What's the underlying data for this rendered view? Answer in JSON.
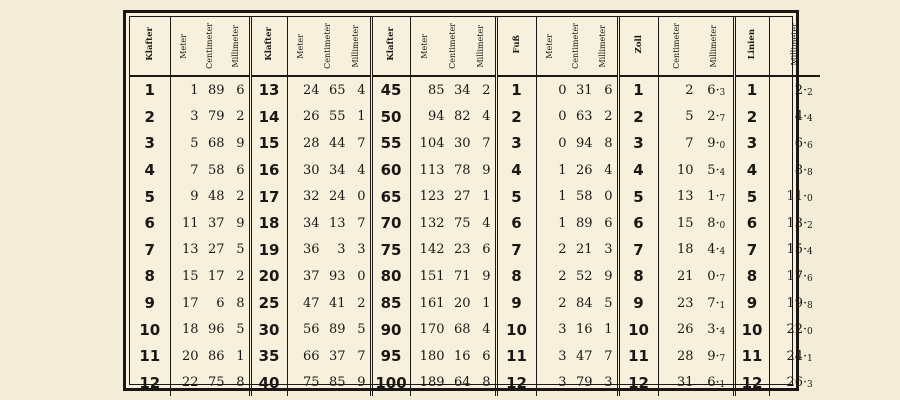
{
  "headers": {
    "klafter": "Klafter",
    "meter": "Meter",
    "centimeter": "Centimeter",
    "millimeter": "Millimeter",
    "fuss": "Fuß",
    "zoll": "Zoll",
    "linien": "Linien"
  },
  "rows": [
    {
      "k1": "1",
      "a": [
        "1",
        "89",
        "6"
      ],
      "k2": "13",
      "b": [
        "24",
        "65",
        "4"
      ],
      "k3": "45",
      "c": [
        "85",
        "34",
        "2"
      ],
      "f": "1",
      "d": [
        "0",
        "31",
        "6"
      ],
      "z": "1",
      "e": [
        "2",
        "6",
        "3"
      ],
      "l": "1",
      "g": [
        "2",
        "2"
      ]
    },
    {
      "k1": "2",
      "a": [
        "3",
        "79",
        "2"
      ],
      "k2": "14",
      "b": [
        "26",
        "55",
        "1"
      ],
      "k3": "50",
      "c": [
        "94",
        "82",
        "4"
      ],
      "f": "2",
      "d": [
        "0",
        "63",
        "2"
      ],
      "z": "2",
      "e": [
        "5",
        "2",
        "7"
      ],
      "l": "2",
      "g": [
        "4",
        "4"
      ]
    },
    {
      "k1": "3",
      "a": [
        "5",
        "68",
        "9"
      ],
      "k2": "15",
      "b": [
        "28",
        "44",
        "7"
      ],
      "k3": "55",
      "c": [
        "104",
        "30",
        "7"
      ],
      "f": "3",
      "d": [
        "0",
        "94",
        "8"
      ],
      "z": "3",
      "e": [
        "7",
        "9",
        "0"
      ],
      "l": "3",
      "g": [
        "6",
        "6"
      ]
    },
    {
      "k1": "4",
      "a": [
        "7",
        "58",
        "6"
      ],
      "k2": "16",
      "b": [
        "30",
        "34",
        "4"
      ],
      "k3": "60",
      "c": [
        "113",
        "78",
        "9"
      ],
      "f": "4",
      "d": [
        "1",
        "26",
        "4"
      ],
      "z": "4",
      "e": [
        "10",
        "5",
        "4"
      ],
      "l": "4",
      "g": [
        "8",
        "8"
      ]
    },
    {
      "k1": "5",
      "a": [
        "9",
        "48",
        "2"
      ],
      "k2": "17",
      "b": [
        "32",
        "24",
        "0"
      ],
      "k3": "65",
      "c": [
        "123",
        "27",
        "1"
      ],
      "f": "5",
      "d": [
        "1",
        "58",
        "0"
      ],
      "z": "5",
      "e": [
        "13",
        "1",
        "7"
      ],
      "l": "5",
      "g": [
        "11",
        "0"
      ]
    },
    {
      "k1": "6",
      "a": [
        "11",
        "37",
        "9"
      ],
      "k2": "18",
      "b": [
        "34",
        "13",
        "7"
      ],
      "k3": "70",
      "c": [
        "132",
        "75",
        "4"
      ],
      "f": "6",
      "d": [
        "1",
        "89",
        "6"
      ],
      "z": "6",
      "e": [
        "15",
        "8",
        "0"
      ],
      "l": "6",
      "g": [
        "13",
        "2"
      ]
    },
    {
      "k1": "7",
      "a": [
        "13",
        "27",
        "5"
      ],
      "k2": "19",
      "b": [
        "36",
        "3",
        "3"
      ],
      "k3": "75",
      "c": [
        "142",
        "23",
        "6"
      ],
      "f": "7",
      "d": [
        "2",
        "21",
        "3"
      ],
      "z": "7",
      "e": [
        "18",
        "4",
        "4"
      ],
      "l": "7",
      "g": [
        "15",
        "4"
      ]
    },
    {
      "k1": "8",
      "a": [
        "15",
        "17",
        "2"
      ],
      "k2": "20",
      "b": [
        "37",
        "93",
        "0"
      ],
      "k3": "80",
      "c": [
        "151",
        "71",
        "9"
      ],
      "f": "8",
      "d": [
        "2",
        "52",
        "9"
      ],
      "z": "8",
      "e": [
        "21",
        "0",
        "7"
      ],
      "l": "8",
      "g": [
        "17",
        "6"
      ]
    },
    {
      "k1": "9",
      "a": [
        "17",
        "6",
        "8"
      ],
      "k2": "25",
      "b": [
        "47",
        "41",
        "2"
      ],
      "k3": "85",
      "c": [
        "161",
        "20",
        "1"
      ],
      "f": "9",
      "d": [
        "2",
        "84",
        "5"
      ],
      "z": "9",
      "e": [
        "23",
        "7",
        "1"
      ],
      "l": "9",
      "g": [
        "19",
        "8"
      ]
    },
    {
      "k1": "10",
      "a": [
        "18",
        "96",
        "5"
      ],
      "k2": "30",
      "b": [
        "56",
        "89",
        "5"
      ],
      "k3": "90",
      "c": [
        "170",
        "68",
        "4"
      ],
      "f": "10",
      "d": [
        "3",
        "16",
        "1"
      ],
      "z": "10",
      "e": [
        "26",
        "3",
        "4"
      ],
      "l": "10",
      "g": [
        "22",
        "0"
      ]
    },
    {
      "k1": "11",
      "a": [
        "20",
        "86",
        "1"
      ],
      "k2": "35",
      "b": [
        "66",
        "37",
        "7"
      ],
      "k3": "95",
      "c": [
        "180",
        "16",
        "6"
      ],
      "f": "11",
      "d": [
        "3",
        "47",
        "7"
      ],
      "z": "11",
      "e": [
        "28",
        "9",
        "7"
      ],
      "l": "11",
      "g": [
        "24",
        "1"
      ]
    },
    {
      "k1": "12",
      "a": [
        "22",
        "75",
        "8"
      ],
      "k2": "40",
      "b": [
        "75",
        "85",
        "9"
      ],
      "k3": "100",
      "c": [
        "189",
        "64",
        "8"
      ],
      "f": "12",
      "d": [
        "3",
        "79",
        "3"
      ],
      "z": "12",
      "e": [
        "31",
        "6",
        "1"
      ],
      "l": "12",
      "g": [
        "26",
        "3"
      ]
    }
  ]
}
